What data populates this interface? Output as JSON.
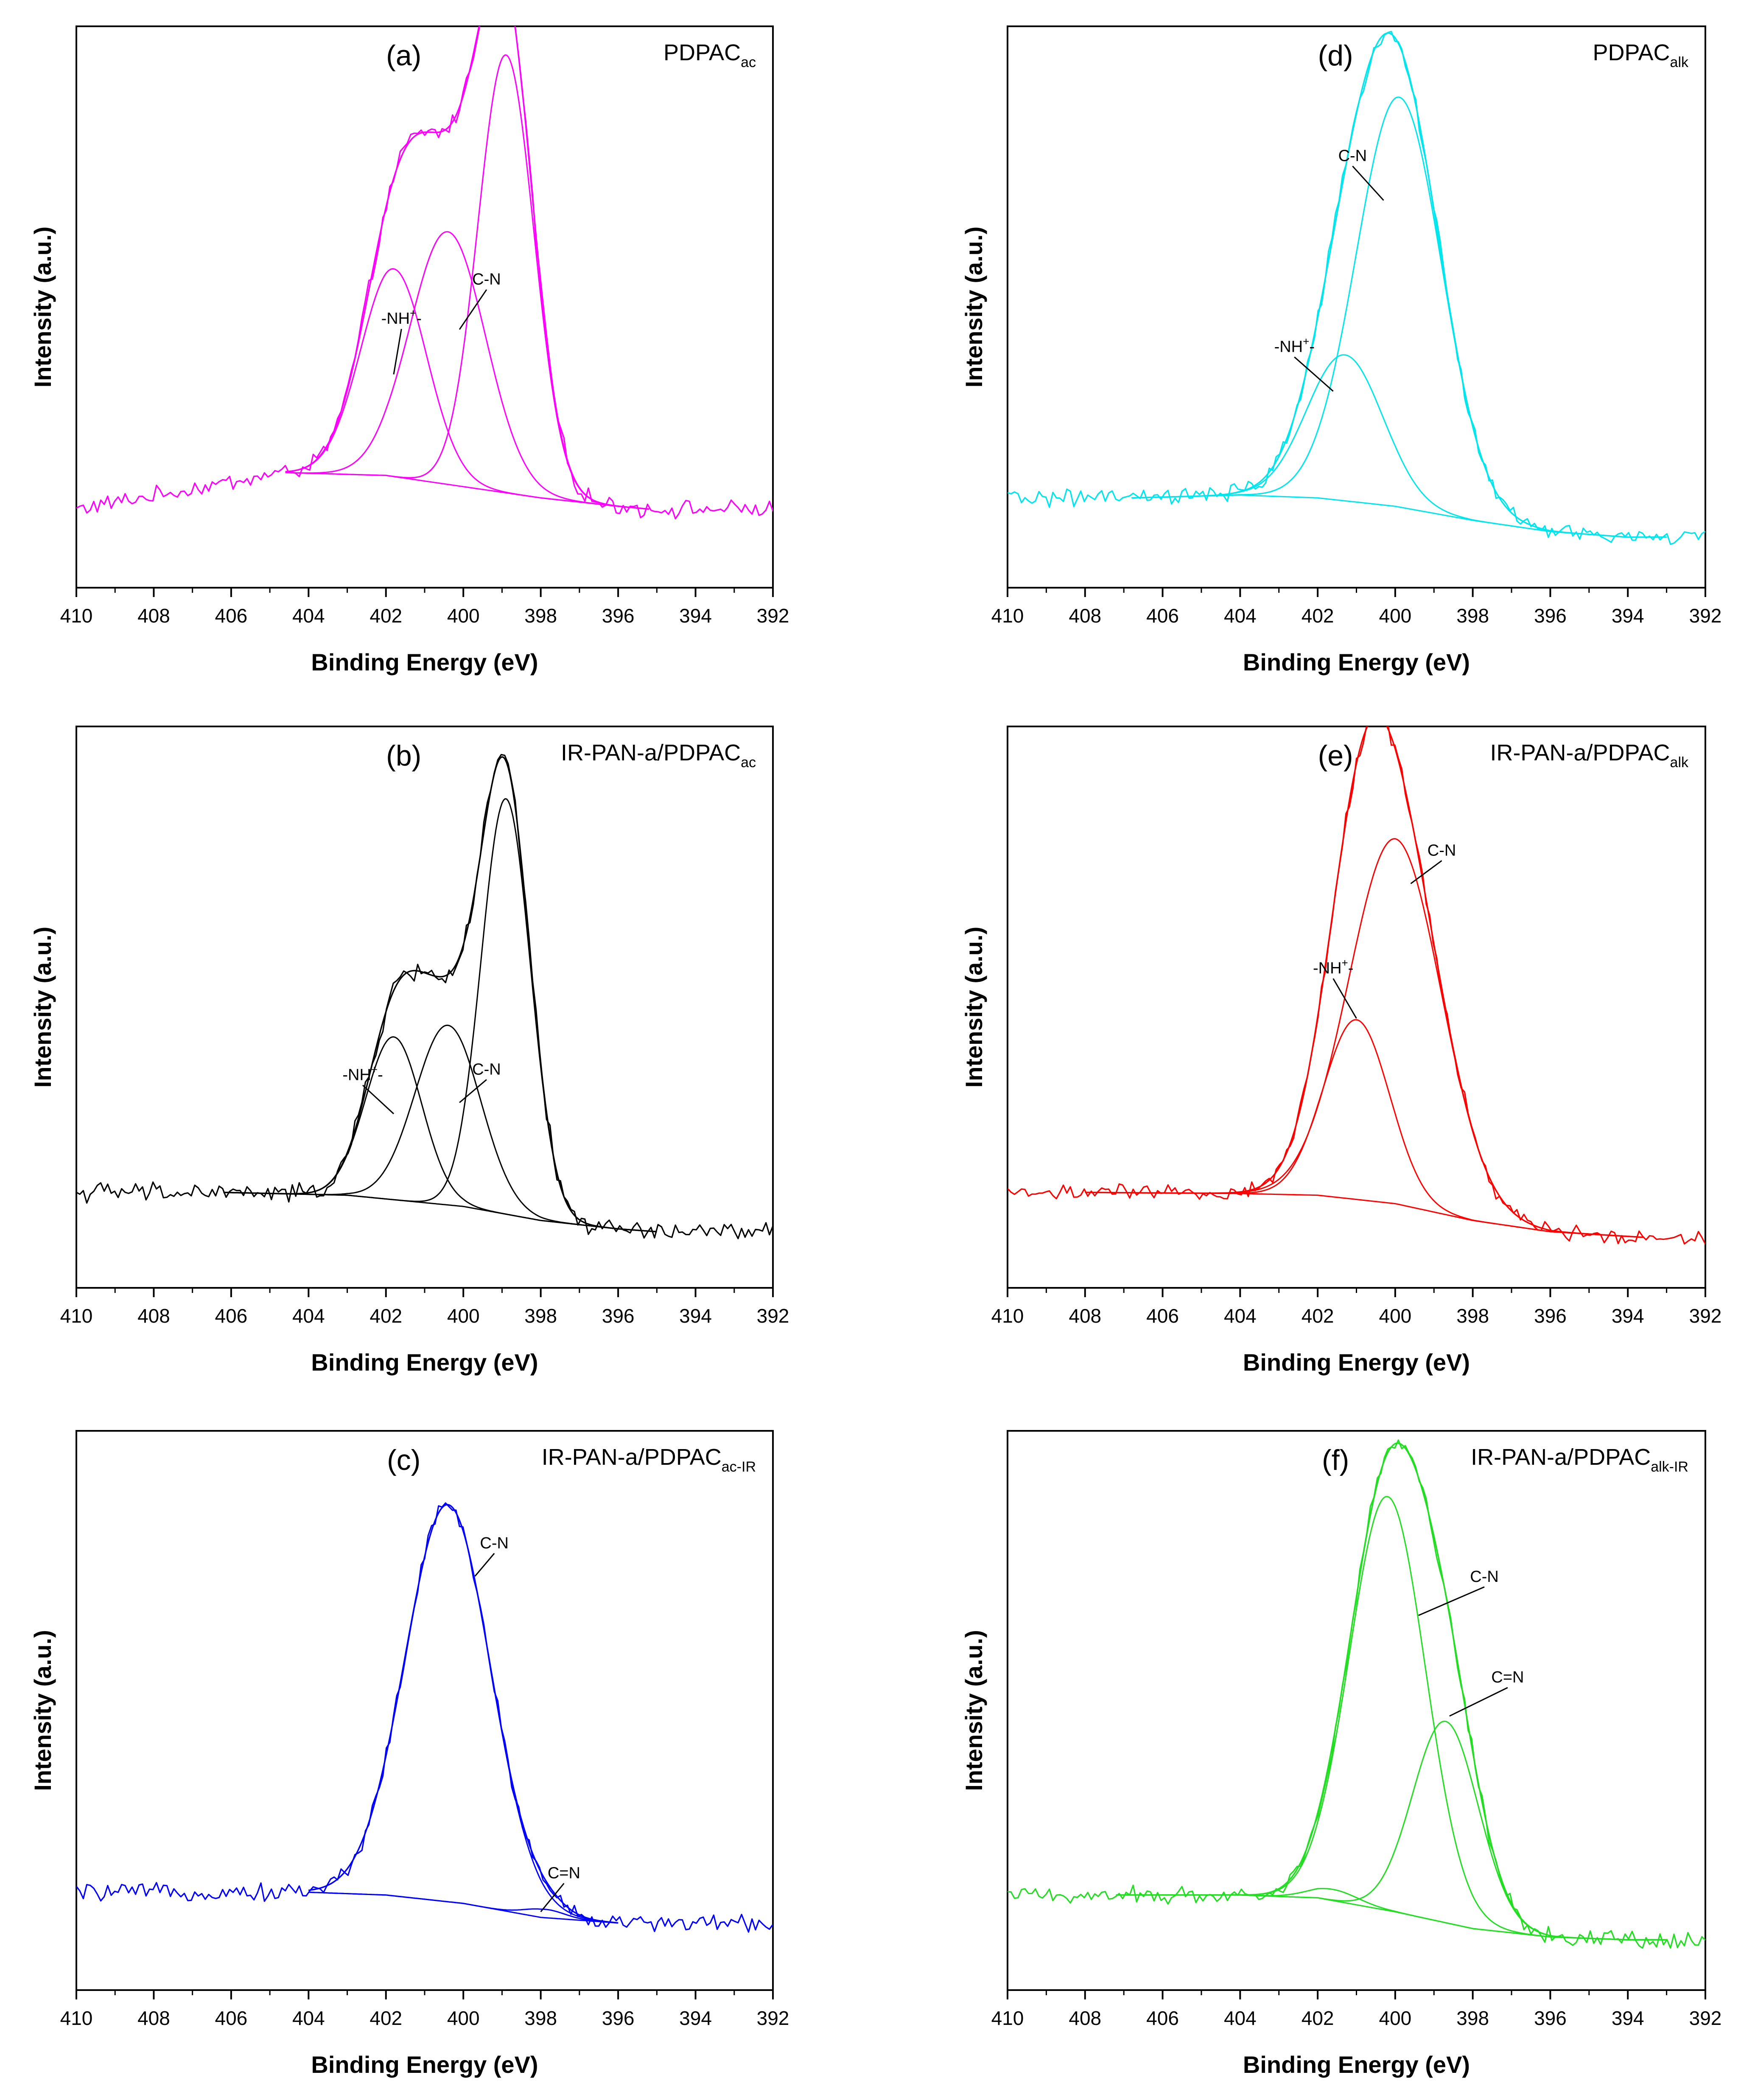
{
  "chart_data": [
    {
      "type": "line",
      "panel": "(a)",
      "sample": "PDPAC",
      "sample_sub": "ac",
      "color": "#ff00ff",
      "xlabel": "Binding Energy (eV)",
      "ylabel": "Intensity (a.u.)",
      "xlim": [
        410,
        392
      ],
      "ylim": [
        0,
        1.0
      ],
      "x_ticks": [
        "410",
        "408",
        "406",
        "404",
        "402",
        "400",
        "398",
        "396",
        "394",
        "392"
      ],
      "x_ticks_values": [
        410,
        408,
        406,
        404,
        402,
        400,
        398,
        396,
        394,
        392
      ],
      "baseline": {
        "x": [
          410,
          404.6,
          402,
          400,
          398,
          396,
          395.2
        ],
        "y": [
          0.14,
          0.205,
          0.2,
          0.18,
          0.16,
          0.145,
          0.14
        ]
      },
      "fit_range": [
        404.6,
        395.2
      ],
      "peaks": [
        {
          "label": "-NH+-",
          "center": 401.8,
          "height": 0.37,
          "fwhm": 2.0
        },
        {
          "label": "C-N",
          "center": 400.4,
          "height": 0.45,
          "fwhm": 2.3
        },
        {
          "label": "",
          "center": 398.9,
          "height": 0.78,
          "fwhm": 1.7
        }
      ],
      "noise": 0.012,
      "annotations": [
        {
          "text": "-NH",
          "sup": "+",
          "after": "-",
          "x": 401.6,
          "y": 0.47,
          "line_to": [
            401.8,
            0.38
          ]
        },
        {
          "text": "C-N",
          "sup": "",
          "after": "",
          "x": 399.4,
          "y": 0.54,
          "line_to": [
            400.1,
            0.46
          ]
        }
      ]
    },
    {
      "type": "line",
      "panel": "(b)",
      "sample": "IR-PAN-a/PDPAC",
      "sample_sub": "ac",
      "color": "#000000",
      "xlabel": "Binding Energy (eV)",
      "ylabel": "Intensity (a.u.)",
      "xlim": [
        410,
        392
      ],
      "ylim": [
        0,
        1.0
      ],
      "x_ticks": [
        "410",
        "408",
        "406",
        "404",
        "402",
        "400",
        "398",
        "396",
        "394",
        "392"
      ],
      "x_ticks_values": [
        410,
        408,
        406,
        404,
        402,
        400,
        398,
        396,
        394,
        392
      ],
      "baseline": {
        "x": [
          410,
          406.2,
          403,
          400,
          398,
          396,
          395
        ],
        "y": [
          0.17,
          0.17,
          0.165,
          0.145,
          0.12,
          0.105,
          0.1
        ]
      },
      "fit_range": [
        406.2,
        395
      ],
      "peaks": [
        {
          "label": "-NH+-",
          "center": 401.8,
          "height": 0.29,
          "fwhm": 1.7
        },
        {
          "label": "C-N",
          "center": 400.4,
          "height": 0.32,
          "fwhm": 2.0
        },
        {
          "label": "",
          "center": 398.9,
          "height": 0.74,
          "fwhm": 1.5
        }
      ],
      "noise": 0.014,
      "annotations": [
        {
          "text": "-NH",
          "sup": "+",
          "after": "-",
          "x": 402.6,
          "y": 0.37,
          "line_to": [
            401.8,
            0.31
          ]
        },
        {
          "text": "C-N",
          "sup": "",
          "after": "",
          "x": 399.4,
          "y": 0.38,
          "line_to": [
            400.1,
            0.33
          ]
        }
      ]
    },
    {
      "type": "line",
      "panel": "(c)",
      "sample": "IR-PAN-a/PDPAC",
      "sample_sub": "ac-IR",
      "color": "#0000ff",
      "xlabel": "Binding Energy (eV)",
      "ylabel": "Intensity (a.u.)",
      "xlim": [
        410,
        392
      ],
      "ylim": [
        0,
        1.0
      ],
      "x_ticks": [
        "410",
        "408",
        "406",
        "404",
        "402",
        "400",
        "398",
        "396",
        "394",
        "392"
      ],
      "x_ticks_values": [
        410,
        408,
        406,
        404,
        402,
        400,
        398,
        396,
        394,
        392
      ],
      "baseline": {
        "x": [
          410,
          404,
          402,
          400,
          398,
          396
        ],
        "y": [
          0.175,
          0.175,
          0.17,
          0.155,
          0.13,
          0.12
        ]
      },
      "fit_range": [
        404,
        396
      ],
      "peaks": [
        {
          "label": "C-N",
          "center": 400.4,
          "height": 0.71,
          "fwhm": 2.6
        },
        {
          "label": "C=N",
          "center": 397.9,
          "height": 0.015,
          "fwhm": 1.2
        }
      ],
      "noise": 0.012,
      "annotations": [
        {
          "text": "C-N",
          "sup": "",
          "after": "",
          "x": 399.2,
          "y": 0.79,
          "line_to": [
            399.7,
            0.74
          ]
        },
        {
          "text": "C=N",
          "sup": "",
          "after": "",
          "x": 397.4,
          "y": 0.2,
          "line_to": [
            398.0,
            0.14
          ]
        }
      ]
    },
    {
      "type": "line",
      "panel": "(d)",
      "sample": "PDPAC",
      "sample_sub": "alk",
      "color": "#00e5ee",
      "xlabel": "Binding Energy (eV)",
      "ylabel": "Intensity (a.u.)",
      "xlim": [
        410,
        392
      ],
      "ylim": [
        0,
        1.0
      ],
      "x_ticks": [
        "410",
        "408",
        "406",
        "404",
        "402",
        "400",
        "398",
        "396",
        "394",
        "392"
      ],
      "x_ticks_values": [
        410,
        408,
        406,
        404,
        402,
        400,
        398,
        396,
        394,
        392
      ],
      "baseline": {
        "x": [
          410,
          406.8,
          404,
          402,
          400,
          398,
          396,
          394,
          393
        ],
        "y": [
          0.16,
          0.16,
          0.165,
          0.16,
          0.145,
          0.12,
          0.1,
          0.09,
          0.09
        ]
      },
      "fit_range": [
        406.8,
        393
      ],
      "peaks": [
        {
          "label": "-NH+-",
          "center": 401.3,
          "height": 0.26,
          "fwhm": 2.3
        },
        {
          "label": "C-N",
          "center": 399.9,
          "height": 0.73,
          "fwhm": 2.6
        }
      ],
      "noise": 0.012,
      "annotations": [
        {
          "text": "-NH",
          "sup": "+",
          "after": "-",
          "x": 402.6,
          "y": 0.42,
          "line_to": [
            401.6,
            0.35
          ]
        },
        {
          "text": "C-N",
          "sup": "",
          "after": "",
          "x": 401.1,
          "y": 0.76,
          "line_to": [
            400.3,
            0.69
          ]
        }
      ]
    },
    {
      "type": "line",
      "panel": "(e)",
      "sample": "IR-PAN-a/PDPAC",
      "sample_sub": "alk",
      "color": "#ff0000",
      "xlabel": "Binding Energy (eV)",
      "ylabel": "Intensity (a.u.)",
      "xlim": [
        410,
        392
      ],
      "ylim": [
        0,
        1.0
      ],
      "x_ticks": [
        "410",
        "408",
        "406",
        "404",
        "402",
        "400",
        "398",
        "396",
        "394",
        "392"
      ],
      "x_ticks_values": [
        410,
        408,
        406,
        404,
        402,
        400,
        398,
        396,
        394,
        392
      ],
      "baseline": {
        "x": [
          410,
          408,
          404,
          402,
          400,
          398,
          396,
          393.6
        ],
        "y": [
          0.17,
          0.17,
          0.168,
          0.165,
          0.15,
          0.12,
          0.1,
          0.09
        ]
      },
      "fit_range": [
        408,
        393.6
      ],
      "peaks": [
        {
          "label": "-NH+-",
          "center": 401.0,
          "height": 0.32,
          "fwhm": 2.0
        },
        {
          "label": "C-N",
          "center": 400.0,
          "height": 0.65,
          "fwhm": 2.8
        }
      ],
      "noise": 0.011,
      "annotations": [
        {
          "text": "-NH",
          "sup": "+",
          "after": "-",
          "x": 401.6,
          "y": 0.56,
          "line_to": [
            401.0,
            0.48
          ]
        },
        {
          "text": "C-N",
          "sup": "",
          "after": "",
          "x": 398.8,
          "y": 0.77,
          "line_to": [
            399.6,
            0.72
          ]
        }
      ]
    },
    {
      "type": "line",
      "panel": "(f)",
      "sample": "IR-PAN-a/PDPAC",
      "sample_sub": "alk-IR",
      "color": "#22dd22",
      "xlabel": "Binding Energy (eV)",
      "ylabel": "Intensity (a.u.)",
      "xlim": [
        410,
        392
      ],
      "ylim": [
        0,
        1.0
      ],
      "x_ticks": [
        "410",
        "408",
        "406",
        "404",
        "402",
        "400",
        "398",
        "396",
        "394",
        "392"
      ],
      "x_ticks_values": [
        410,
        408,
        406,
        404,
        402,
        400,
        398,
        396,
        394,
        392
      ],
      "baseline": {
        "x": [
          410,
          407.2,
          404,
          402,
          400,
          398,
          396,
          394,
          393
        ],
        "y": [
          0.17,
          0.17,
          0.17,
          0.165,
          0.14,
          0.11,
          0.095,
          0.09,
          0.09
        ]
      },
      "fit_range": [
        407.2,
        393
      ],
      "peaks": [
        {
          "label": "",
          "center": 401.6,
          "height": 0.02,
          "fwhm": 1.5
        },
        {
          "label": "C-N",
          "center": 400.2,
          "height": 0.74,
          "fwhm": 2.3
        },
        {
          "label": "C=N",
          "center": 398.7,
          "height": 0.36,
          "fwhm": 2.0
        }
      ],
      "noise": 0.012,
      "annotations": [
        {
          "text": "C-N",
          "sup": "",
          "after": "",
          "x": 397.7,
          "y": 0.73,
          "line_to": [
            399.4,
            0.67
          ]
        },
        {
          "text": "C=N",
          "sup": "",
          "after": "",
          "x": 397.1,
          "y": 0.55,
          "line_to": [
            398.6,
            0.49
          ]
        }
      ]
    }
  ]
}
